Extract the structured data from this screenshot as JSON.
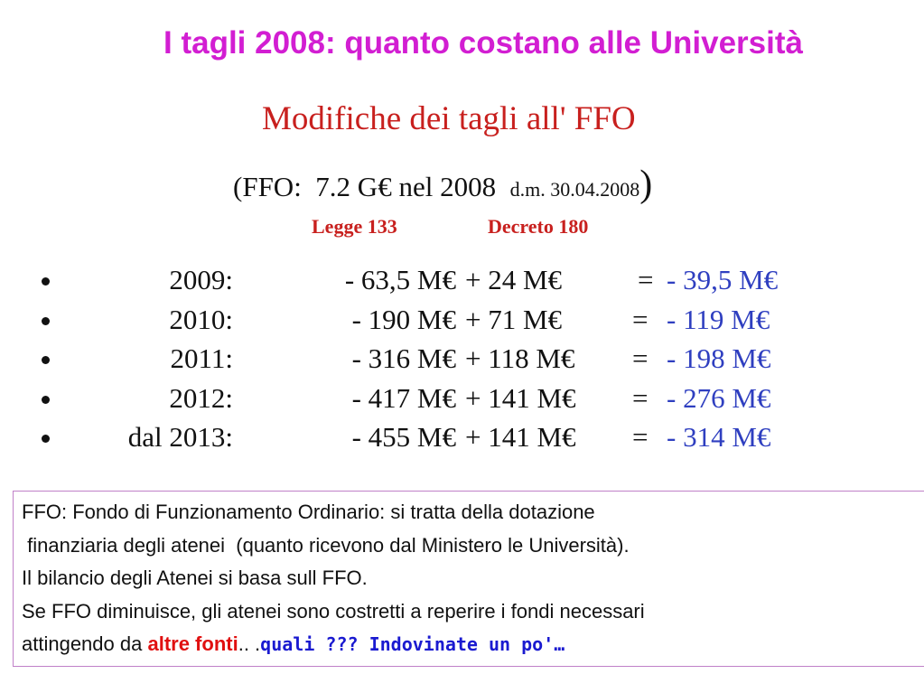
{
  "title": "I tagli 2008: quanto costano alle Università",
  "subtitle": "Modifiche dei tagli all' FFO",
  "ffo_note": {
    "main": "(FFO:  7.2 G€ nel 2008",
    "decree": "d.m. 30.04.2008",
    "close": ")"
  },
  "columns": [
    "Legge 133",
    "Decreto 180"
  ],
  "rows": [
    {
      "year": "2009:",
      "legge": "- 63,5 M€",
      "decreto": "+ 24 M€",
      "equals": "=",
      "total": "- 39,5 M€"
    },
    {
      "year": "2010:",
      "legge": "- 190 M€",
      "decreto": "+ 71 M€",
      "equals": "=",
      "total": "- 119 M€"
    },
    {
      "year": "2011:",
      "legge": "- 316 M€",
      "decreto": "+ 118 M€",
      "equals": "=",
      "total": "- 198 M€"
    },
    {
      "year": "2012:",
      "legge": "- 417 M€",
      "decreto": "+ 141 M€",
      "equals": "=",
      "total": "- 276 M€"
    },
    {
      "year": "dal 2013:",
      "legge": "- 455 M€",
      "decreto": "+ 141 M€",
      "equals": "=",
      "total": "- 314 M€"
    }
  ],
  "box": {
    "lines": [
      "FFO: Fondo di Funzionamento Ordinario: si tratta della dotazione",
      " finanziaria degli atenei  (quanto ricevono dal Ministero le Università).",
      "Il bilancio degli Atenei si basa sull FFO.",
      "Se FFO diminuisce, gli atenei sono costretti a reperire i fondi necessari"
    ],
    "last_line": {
      "start": "attingendo da ",
      "highlight": "altre fonti",
      "dots": ".. .",
      "question": "quali ??? Indovinate un po'…"
    }
  }
}
